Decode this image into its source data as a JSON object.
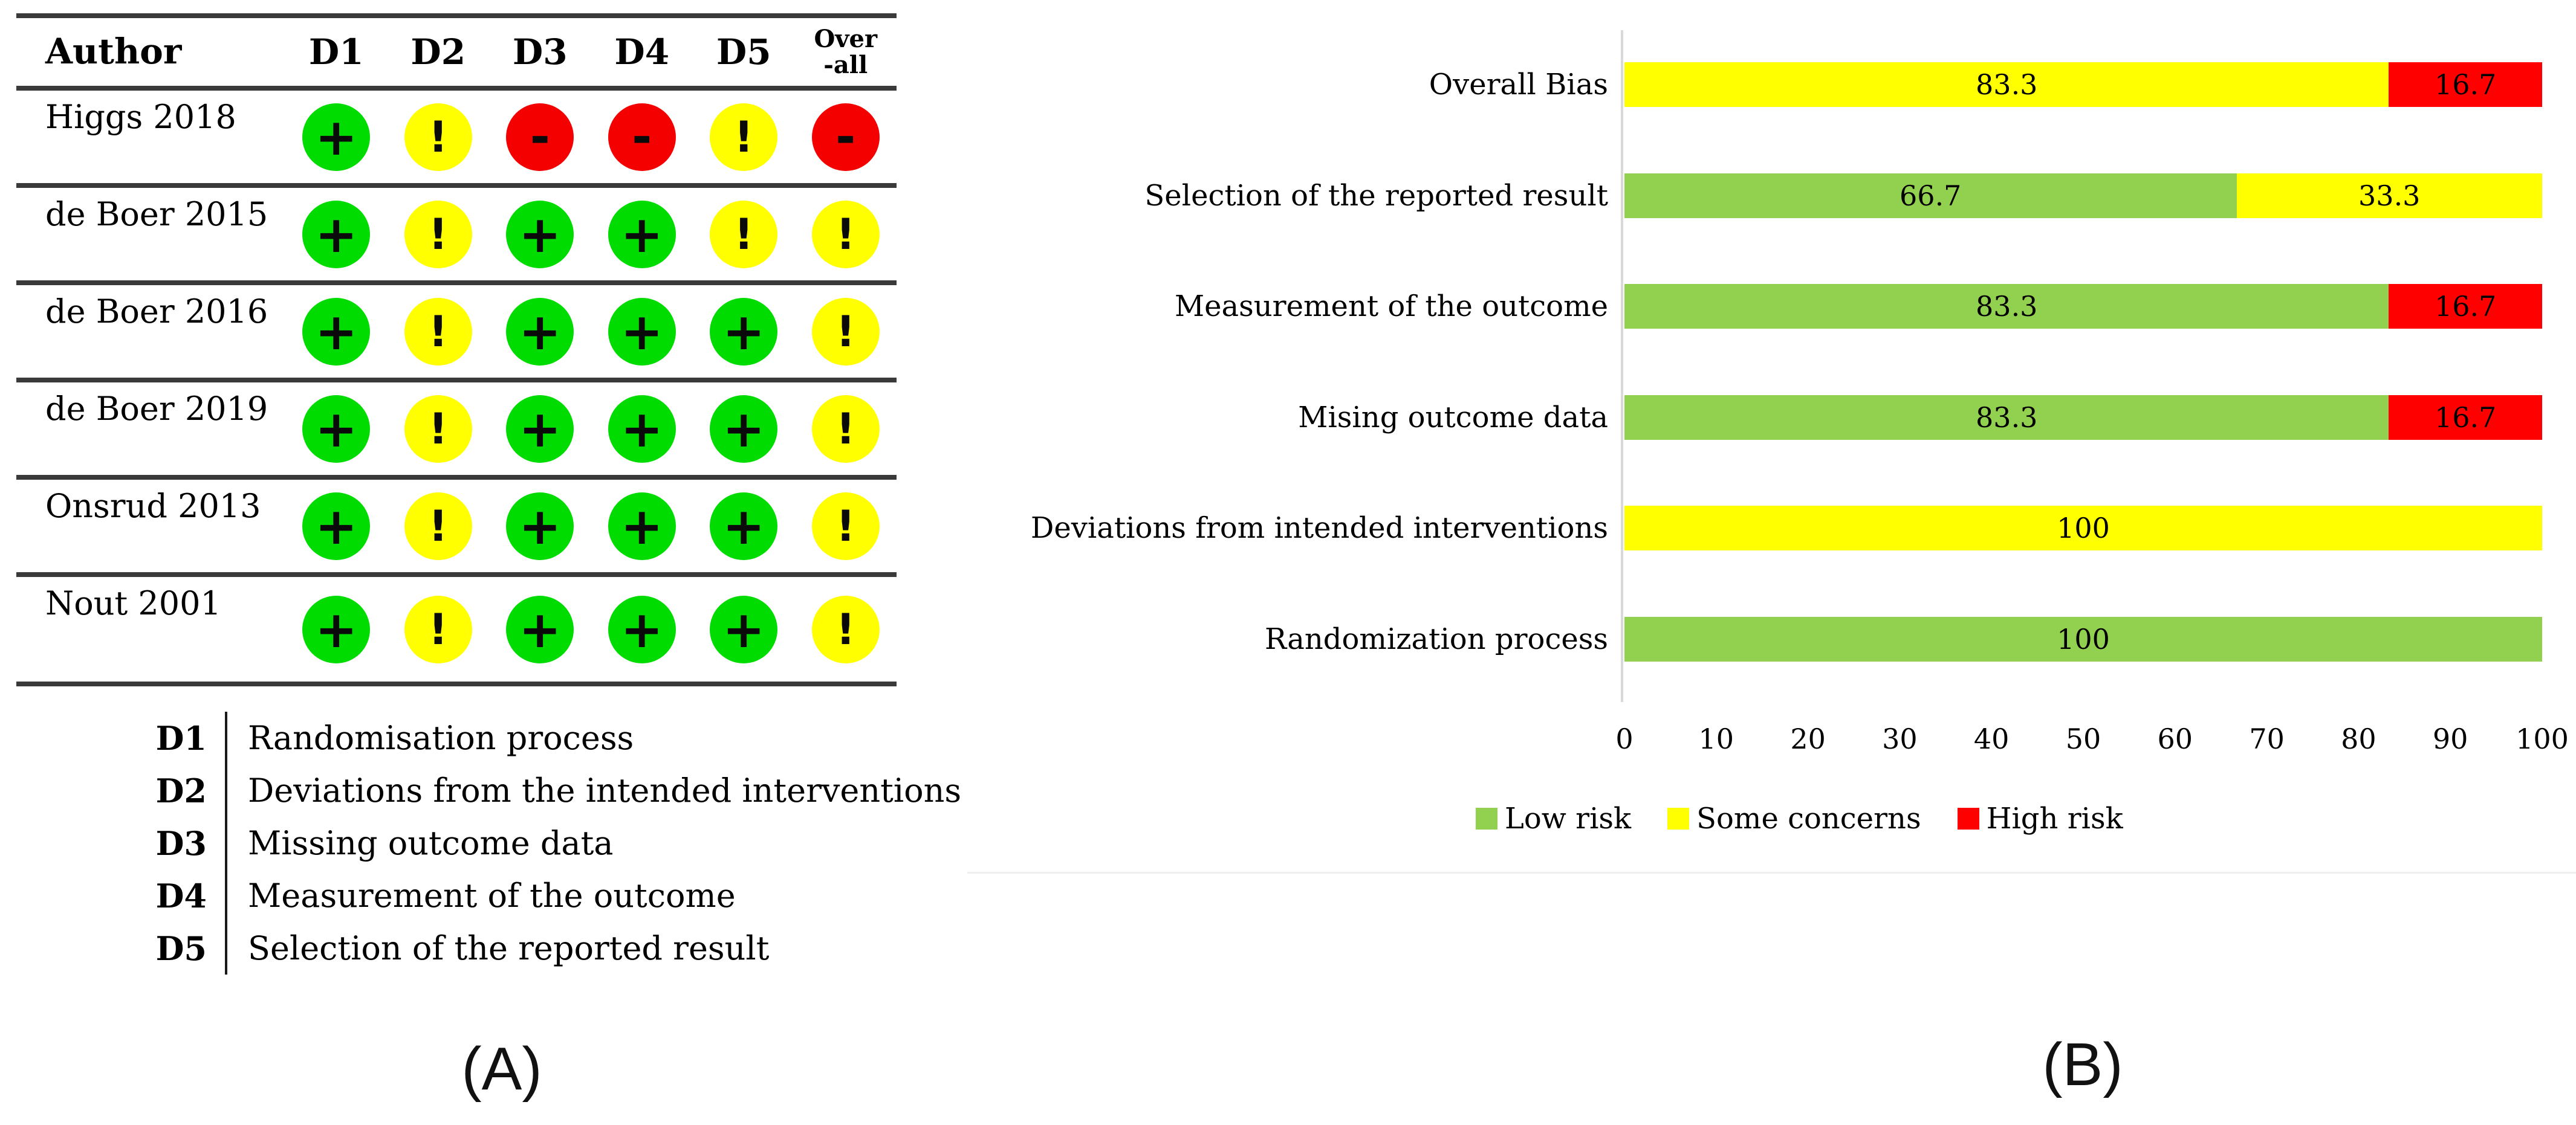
{
  "figure": {
    "panel_a_label": "(A)",
    "panel_b_label": "(B)"
  },
  "colors": {
    "circle_low": "#00dc00",
    "circle_some": "#ffff00",
    "circle_high": "#f40000",
    "bar_low": "#92d050",
    "bar_some": "#ffff00",
    "bar_high": "#ff0000",
    "table_rule": "#3a3a3a",
    "axis_line": "#d9d9d9"
  },
  "panel_a": {
    "table": {
      "author_header": "Author",
      "domain_headers": [
        "D1",
        "D2",
        "D3",
        "D4",
        "D5"
      ],
      "overall_header_lines": [
        "Over",
        "-all"
      ],
      "rows": [
        {
          "author": "Higgs 2018",
          "ratings": [
            "low",
            "some",
            "high",
            "high",
            "some",
            "high"
          ]
        },
        {
          "author": "de Boer 2015",
          "ratings": [
            "low",
            "some",
            "low",
            "low",
            "some",
            "some"
          ]
        },
        {
          "author": "de Boer 2016",
          "ratings": [
            "low",
            "some",
            "low",
            "low",
            "low",
            "some"
          ]
        },
        {
          "author": "de Boer 2019",
          "ratings": [
            "low",
            "some",
            "low",
            "low",
            "low",
            "some"
          ]
        },
        {
          "author": "Onsrud 2013",
          "ratings": [
            "low",
            "some",
            "low",
            "low",
            "low",
            "some"
          ]
        },
        {
          "author": "Nout 2001",
          "ratings": [
            "low",
            "some",
            "low",
            "low",
            "low",
            "some"
          ]
        }
      ]
    },
    "rating_styles": {
      "low": {
        "symbol": "+",
        "color": "#00dc00",
        "sym_class": "sym-plus"
      },
      "some": {
        "symbol": "!",
        "color": "#ffff00",
        "sym_class": "sym-excl"
      },
      "high": {
        "symbol": "-",
        "color": "#f40000",
        "sym_class": "sym-minus"
      }
    },
    "domain_legend": [
      {
        "key": "D1",
        "label": "Randomisation process"
      },
      {
        "key": "D2",
        "label": "Deviations from the intended interventions"
      },
      {
        "key": "D3",
        "label": "Missing outcome data"
      },
      {
        "key": "D4",
        "label": "Measurement of the outcome"
      },
      {
        "key": "D5",
        "label": "Selection of the reported result"
      }
    ]
  },
  "chart_data": {
    "type": "bar",
    "orientation": "horizontal",
    "stacked": true,
    "title": "",
    "xlabel": "",
    "ylabel": "",
    "categories": [
      "Overall Bias",
      "Selection of the reported result",
      "Measurement of the outcome",
      "Mising outcome data",
      "Deviations from intended interventions",
      "Randomization process"
    ],
    "series": [
      {
        "name": "Low risk",
        "color": "#92d050",
        "values": [
          0,
          66.7,
          83.3,
          83.3,
          0,
          100
        ]
      },
      {
        "name": "Some concerns",
        "color": "#ffff00",
        "values": [
          83.3,
          33.3,
          0,
          0,
          100,
          0
        ]
      },
      {
        "name": "High risk",
        "color": "#ff0000",
        "values": [
          16.7,
          0,
          16.7,
          16.7,
          0,
          0
        ]
      }
    ],
    "xlim": [
      0,
      100
    ],
    "xticks": [
      0,
      10,
      20,
      30,
      40,
      50,
      60,
      70,
      80,
      90,
      100
    ],
    "legend": [
      "Low risk",
      "Some concerns",
      "High risk"
    ],
    "legend_position": "bottom",
    "grid": false,
    "data_labels": true
  }
}
